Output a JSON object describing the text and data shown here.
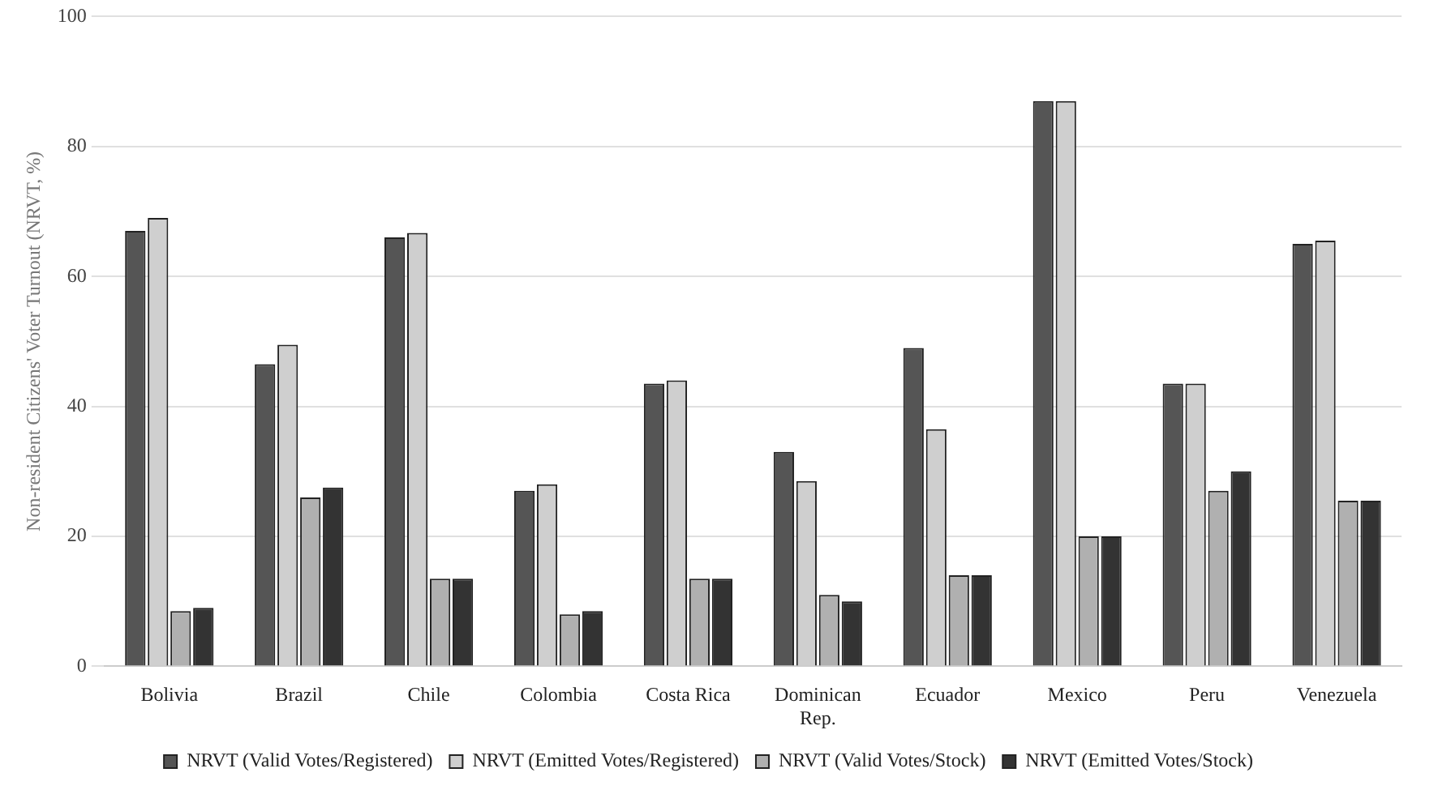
{
  "chart_data": {
    "type": "bar",
    "ylabel": "Non-resident Citizens' Voter Turnout (NRVT, %)",
    "categories": [
      "Bolivia",
      "Brazil",
      "Chile",
      "Colombia",
      "Costa Rica",
      "Dominican Rep.",
      "Ecuador",
      "Mexico",
      "Peru",
      "Venezuela"
    ],
    "series": [
      {
        "name": "NRVT (Valid Votes/Registered)",
        "color": "#555555",
        "values": [
          67,
          46.5,
          66,
          27,
          43.5,
          33,
          49,
          87,
          43.5,
          65
        ]
      },
      {
        "name": "NRVT (Emitted Votes/Registered)",
        "color": "#cfcfcf",
        "values": [
          69,
          49.5,
          66.7,
          28,
          44,
          28.5,
          36.5,
          87,
          43.5,
          65.5
        ]
      },
      {
        "name": "NRVT (Valid Votes/Stock)",
        "color": "#b0b0b0",
        "values": [
          8.5,
          26,
          13.5,
          8,
          13.5,
          11,
          14,
          20,
          27,
          25.5
        ]
      },
      {
        "name": "NRVT (Emitted Votes/Stock)",
        "color": "#333333",
        "values": [
          9,
          27.5,
          13.5,
          8.5,
          13.5,
          10,
          14,
          20,
          30,
          25.5
        ]
      }
    ],
    "ylim": [
      0,
      100
    ],
    "yticks": [
      0,
      20,
      40,
      60,
      80,
      100
    ],
    "grid": "y",
    "legend": "bottom"
  }
}
